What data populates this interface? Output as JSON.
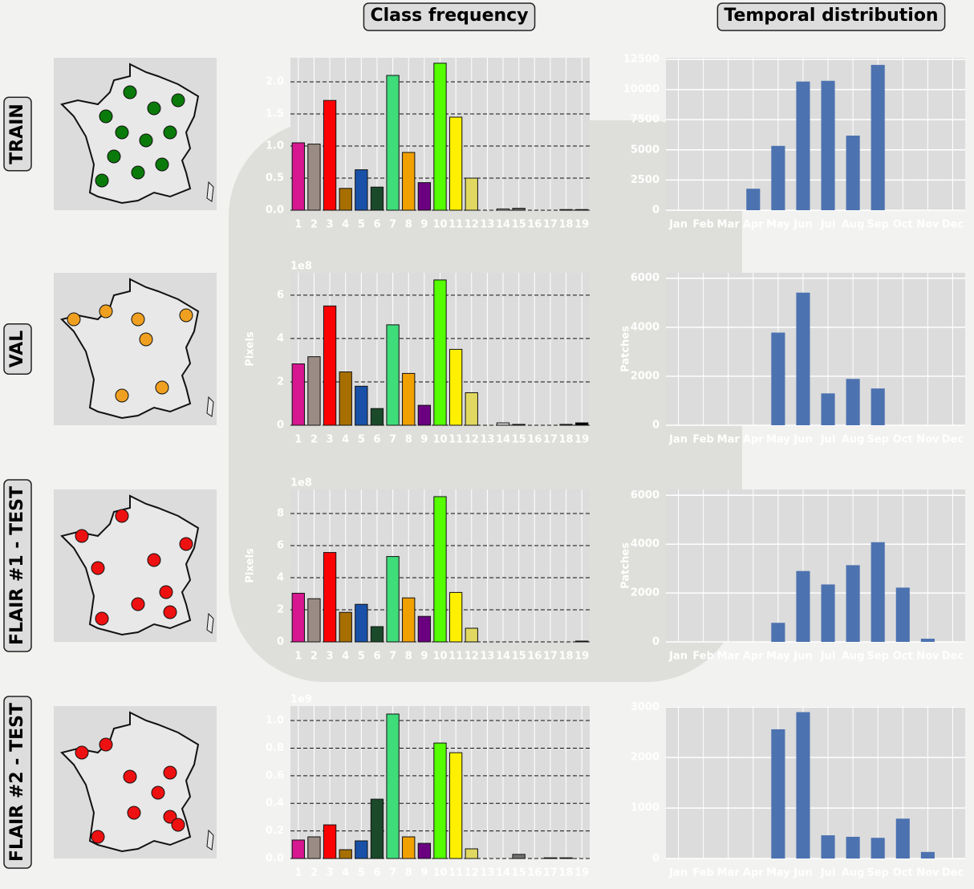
{
  "columns": [
    "Class frequency",
    "Temporal distribution"
  ],
  "rows": [
    "TRAIN",
    "VAL",
    "FLAIR #1 - TEST",
    "FLAIR #2 - TEST"
  ],
  "chart_data": [
    {
      "type": "bar",
      "categories": [
        "1",
        "2",
        "3",
        "4",
        "5",
        "6",
        "7",
        "8",
        "9",
        "10",
        "11",
        "12",
        "13",
        "14",
        "15",
        "16",
        "17",
        "18",
        "19"
      ],
      "values": [
        1.05,
        1.03,
        1.71,
        0.34,
        0.63,
        0.36,
        2.1,
        0.9,
        0.43,
        2.29,
        1.45,
        0.5,
        0,
        0.02,
        0.03,
        0,
        0,
        0.01,
        0.01
      ],
      "colors": [
        "#d6178f",
        "#9a8c84",
        "#ff0000",
        "#a66f00",
        "#1951a8",
        "#1a4a2a",
        "#3fdc7a",
        "#f0a000",
        "#6a0080",
        "#55ff00",
        "#fff000",
        "#e0d860",
        "#c0c0c0",
        "#d8d8d8",
        "#707070",
        "#b0e0d0",
        "#808080",
        "#606060",
        "#000000"
      ],
      "ylim": [
        0,
        2.375
      ],
      "yticks": [
        {
          "value": 0,
          "label": "0.0"
        },
        0.5,
        {
          "value": 1,
          "label": "1.0"
        },
        1.5,
        {
          "value": 2,
          "label": "2.0"
        }
      ],
      "grid": true
    },
    {
      "type": "bar",
      "categories": [
        "Jan",
        "Feb",
        "Mar",
        "Apr",
        "May",
        "Jun",
        "Jul",
        "Aug",
        "Sep",
        "Oct",
        "Nov",
        "Dec"
      ],
      "values": [
        0,
        0,
        0,
        1780,
        5330,
        10660,
        10720,
        6180,
        12040,
        0,
        0,
        0
      ],
      "color": "#4c72b0",
      "ylim": [
        0,
        12630
      ],
      "yticks": [
        0,
        2500,
        5000,
        7500,
        10000,
        12500
      ],
      "grid": true
    },
    {
      "type": "bar",
      "categories": [
        "1",
        "2",
        "3",
        "4",
        "5",
        "6",
        "7",
        "8",
        "9",
        "10",
        "11",
        "12",
        "13",
        "14",
        "15",
        "16",
        "17",
        "18",
        "19"
      ],
      "values": [
        2.83,
        3.16,
        5.5,
        2.46,
        1.8,
        0.77,
        4.63,
        2.39,
        0.92,
        6.7,
        3.5,
        1.5,
        0,
        0.11,
        0.04,
        0,
        0,
        0.04,
        0.11
      ],
      "colors": [
        "#d6178f",
        "#9a8c84",
        "#ff0000",
        "#a66f00",
        "#1951a8",
        "#1a4a2a",
        "#3fdc7a",
        "#f0a000",
        "#6a0080",
        "#55ff00",
        "#fff000",
        "#e0d860",
        "#c0c0c0",
        "#d8d8d8",
        "#707070",
        "#b0e0d0",
        "#808080",
        "#606060",
        "#000000"
      ],
      "ylabel": "Pixels",
      "offset": "1e8",
      "ylim": [
        0,
        7.03
      ],
      "yticks": [
        0,
        2,
        4,
        6
      ],
      "grid": true
    },
    {
      "type": "bar",
      "categories": [
        "Jan",
        "Feb",
        "Mar",
        "Apr",
        "May",
        "Jun",
        "Jul",
        "Aug",
        "Sep",
        "Oct",
        "Nov",
        "Dec"
      ],
      "values": [
        0,
        0,
        0,
        0,
        3780,
        5410,
        1300,
        1890,
        1500,
        0,
        0,
        0
      ],
      "color": "#4c72b0",
      "ylabel": "Patches",
      "ylim": [
        0,
        6220
      ],
      "yticks": [
        0,
        2000,
        4000,
        6000
      ],
      "grid": true
    },
    {
      "type": "bar",
      "categories": [
        "1",
        "2",
        "3",
        "4",
        "5",
        "6",
        "7",
        "8",
        "9",
        "10",
        "11",
        "12",
        "13",
        "14",
        "15",
        "16",
        "17",
        "18",
        "19"
      ],
      "values": [
        3.03,
        2.69,
        5.57,
        1.84,
        2.34,
        0.95,
        5.32,
        2.74,
        1.59,
        9.05,
        3.08,
        0.85,
        0,
        0,
        0,
        0,
        0,
        0,
        0.05
      ],
      "colors": [
        "#d6178f",
        "#9a8c84",
        "#ff0000",
        "#a66f00",
        "#1951a8",
        "#1a4a2a",
        "#3fdc7a",
        "#f0a000",
        "#6a0080",
        "#55ff00",
        "#fff000",
        "#e0d860",
        "#c0c0c0",
        "#d8d8d8",
        "#707070",
        "#b0e0d0",
        "#808080",
        "#606060",
        "#000000"
      ],
      "ylabel": "Pixels",
      "offset": "1e8",
      "ylim": [
        0,
        9.5
      ],
      "yticks": [
        0,
        2,
        4,
        6,
        8
      ],
      "grid": true
    },
    {
      "type": "bar",
      "categories": [
        "Jan",
        "Feb",
        "Mar",
        "Apr",
        "May",
        "Jun",
        "Jul",
        "Aug",
        "Sep",
        "Oct",
        "Nov",
        "Dec"
      ],
      "values": [
        0,
        0,
        0,
        0,
        780,
        2900,
        2350,
        3140,
        4080,
        2220,
        130,
        0
      ],
      "color": "#4c72b0",
      "ylabel": "Patches",
      "ylim": [
        0,
        6240
      ],
      "yticks": [
        0,
        2000,
        4000,
        6000
      ],
      "grid": true
    },
    {
      "type": "bar",
      "categories": [
        "1",
        "2",
        "3",
        "4",
        "5",
        "6",
        "7",
        "8",
        "9",
        "10",
        "11",
        "12",
        "13",
        "14",
        "15",
        "16",
        "17",
        "18",
        "19"
      ],
      "values": [
        0.134,
        0.157,
        0.244,
        0.064,
        0.128,
        0.43,
        1.047,
        0.157,
        0.11,
        0.837,
        0.767,
        0.07,
        0,
        0,
        0.03,
        0,
        0.005,
        0.005,
        0
      ],
      "colors": [
        "#d6178f",
        "#9a8c84",
        "#ff0000",
        "#a66f00",
        "#1951a8",
        "#1a4a2a",
        "#3fdc7a",
        "#f0a000",
        "#6a0080",
        "#55ff00",
        "#fff000",
        "#e0d860",
        "#c0c0c0",
        "#d8d8d8",
        "#707070",
        "#b0e0d0",
        "#808080",
        "#606060",
        "#000000"
      ],
      "offset": "1e9",
      "ylim": [
        0,
        1.105
      ],
      "yticks": [
        {
          "value": 0,
          "label": "0.0"
        },
        0.2,
        0.4,
        0.6,
        0.8,
        {
          "value": 1,
          "label": "1.0"
        }
      ],
      "grid": true
    },
    {
      "type": "bar",
      "categories": [
        "Jan",
        "Feb",
        "Mar",
        "Apr",
        "May",
        "Jun",
        "Jul",
        "Aug",
        "Sep",
        "Oct",
        "Nov",
        "Dec"
      ],
      "values": [
        0,
        0,
        0,
        0,
        2560,
        2900,
        460,
        430,
        410,
        790,
        130,
        0
      ],
      "color": "#4c72b0",
      "ylim": [
        0,
        3020
      ],
      "yticks": [
        0,
        1000,
        2000,
        3000
      ],
      "grid": true
    }
  ]
}
